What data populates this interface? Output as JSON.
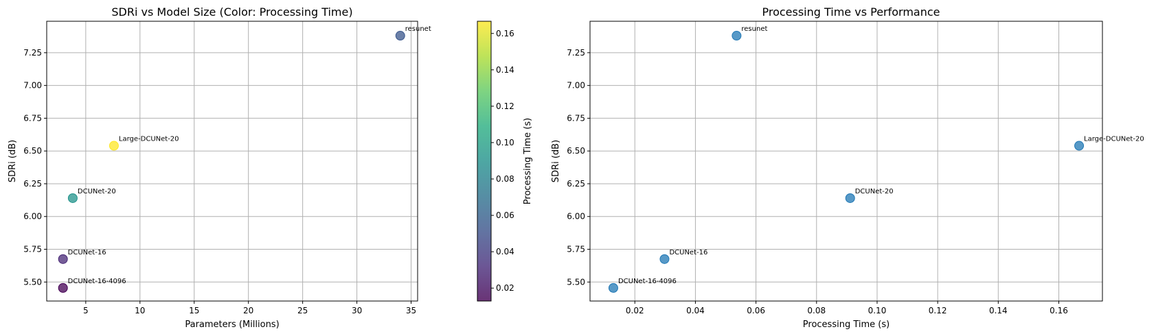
{
  "chart_data": [
    {
      "type": "scatter",
      "title": "SDRi vs Model Size (Color: Processing Time)",
      "xlabel": "Parameters (Millions)",
      "ylabel": "SDRi (dB)",
      "xlim": [
        1.4,
        35.6
      ],
      "ylim": [
        5.355,
        7.49
      ],
      "xticks": [
        "5",
        "10",
        "15",
        "20",
        "25",
        "30",
        "35"
      ],
      "yticks": [
        "5.50",
        "5.75",
        "6.00",
        "6.25",
        "6.50",
        "6.75",
        "7.00",
        "7.25"
      ],
      "grid": true,
      "colorbar": {
        "label": "Processing Time (s)",
        "colormap": "viridis",
        "range": [
          0.0129,
          0.1667
        ],
        "ticks": [
          "0.02",
          "0.04",
          "0.06",
          "0.08",
          "0.10",
          "0.12",
          "0.14",
          "0.16"
        ]
      },
      "points": [
        {
          "label": "resunet",
          "x": 34.0,
          "y": 7.38,
          "color_value": 0.0536
        },
        {
          "label": "Large-DCUNet-20",
          "x": 7.6,
          "y": 6.54,
          "color_value": 0.1667
        },
        {
          "label": "DCUNet-20",
          "x": 3.8,
          "y": 6.14,
          "color_value": 0.0911
        },
        {
          "label": "DCUNet-16",
          "x": 2.9,
          "y": 5.675,
          "color_value": 0.0298
        },
        {
          "label": "DCUNet-16-4096",
          "x": 2.9,
          "y": 5.455,
          "color_value": 0.0129
        }
      ]
    },
    {
      "type": "scatter",
      "title": "Processing Time vs Performance",
      "xlabel": "Processing Time (s)",
      "ylabel": "SDRi (dB)",
      "xlim": [
        0.0052,
        0.1744
      ],
      "ylim": [
        5.355,
        7.49
      ],
      "xticks": [
        "0.02",
        "0.04",
        "0.06",
        "0.08",
        "0.10",
        "0.12",
        "0.14",
        "0.16"
      ],
      "yticks": [
        "5.50",
        "5.75",
        "6.00",
        "6.25",
        "6.50",
        "6.75",
        "7.00",
        "7.25"
      ],
      "grid": true,
      "marker_color": "#1f77b4",
      "points": [
        {
          "label": "resunet",
          "x": 0.0536,
          "y": 7.38
        },
        {
          "label": "Large-DCUNet-20",
          "x": 0.1667,
          "y": 6.54
        },
        {
          "label": "DCUNet-20",
          "x": 0.0911,
          "y": 6.14
        },
        {
          "label": "DCUNet-16",
          "x": 0.0298,
          "y": 5.675
        },
        {
          "label": "DCUNet-16-4096",
          "x": 0.0129,
          "y": 5.455
        }
      ]
    }
  ]
}
